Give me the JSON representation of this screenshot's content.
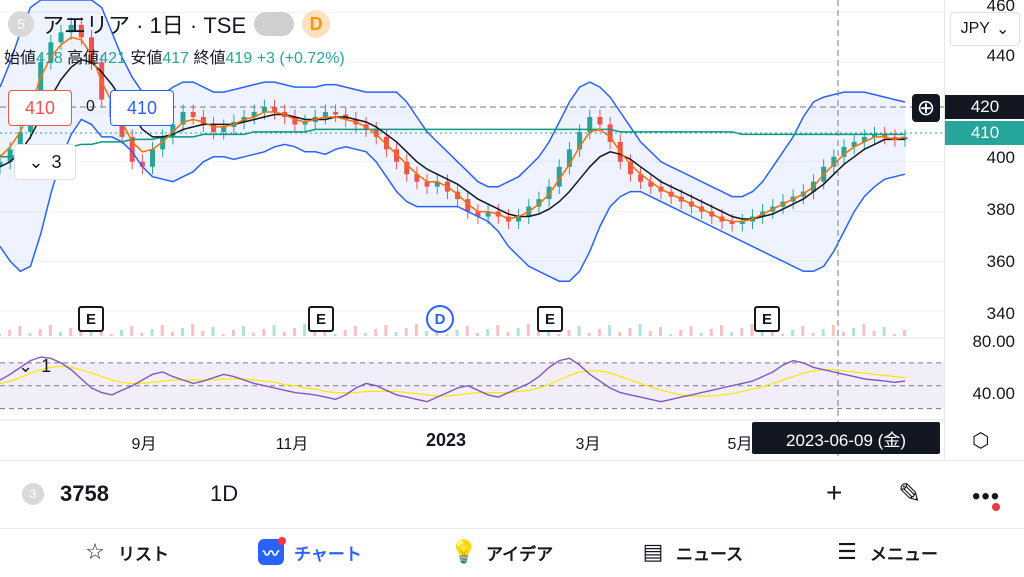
{
  "header": {
    "symbol_badge": "5",
    "title": "アエリア · 1日 · TSE",
    "d_badge": "D",
    "currency": "JPY",
    "currency_chevron": "⌄"
  },
  "ohlc": {
    "open_label": "始値",
    "open_value": "418",
    "high_label": "高値",
    "high_value": "421",
    "low_label": "安値",
    "low_value": "417",
    "close_label": "終値",
    "close_value": "419",
    "change": "+3 (+0.72%)"
  },
  "indicator_boxes": {
    "left_value": "410",
    "middle_value": "0",
    "right_value": "410"
  },
  "collapse_main": {
    "chevron": "⌄",
    "count": "3"
  },
  "collapse_rsi": {
    "chevron": "⌄",
    "count": "1"
  },
  "price_axis": {
    "ticks": [
      "440",
      "420",
      "400",
      "380",
      "360",
      "340"
    ],
    "top_tick": "460",
    "crosshair_price": "420",
    "last_price": "410",
    "rsi_ticks": [
      "80.00",
      "40.00"
    ],
    "colors": {
      "crosshair_tag": "#131722",
      "last_price_tag": "#26a69a"
    }
  },
  "time_axis": {
    "labels": [
      "9月",
      "11月",
      "2023",
      "3月",
      "5月"
    ],
    "crosshair_date": "2023-06-09 (金)"
  },
  "markers": {
    "earnings": "E",
    "dividend": "D"
  },
  "toolbar": {
    "symbol_num": "3",
    "symbol_code": "3758",
    "interval": "1D",
    "plus_icon": "+",
    "draw_icon": "✎",
    "more_icon": "•••"
  },
  "bottom_nav": {
    "items": [
      {
        "label": "リスト",
        "icon": "star-icon"
      },
      {
        "label": "チャート",
        "icon": "chart-icon"
      },
      {
        "label": "アイデア",
        "icon": "lightbulb-icon"
      },
      {
        "label": "ニュース",
        "icon": "news-icon"
      },
      {
        "label": "メニュー",
        "icon": "menu-icon"
      }
    ]
  },
  "chart_data": {
    "type": "candlestick",
    "x_range": [
      "2022-07",
      "2023-06"
    ],
    "ylim": [
      330,
      465
    ],
    "rsi_ylim": [
      20,
      90
    ],
    "rsi_bands": [
      70,
      50,
      30
    ],
    "colors": {
      "up": "#26a69a",
      "down": "#ef5350",
      "bb": "#2962ff",
      "bb_fill": "#2962ff",
      "ma_short": "#ff6d00",
      "ma_mid": "#131722",
      "ma_long": "#089981",
      "rsi": "#7e57c2",
      "rsi_ma": "#ffe600"
    },
    "close": [
      400,
      405,
      412,
      425,
      440,
      448,
      452,
      455,
      450,
      440,
      425,
      418,
      410,
      400,
      398,
      405,
      410,
      415,
      420,
      418,
      415,
      412,
      414,
      416,
      418,
      420,
      422,
      420,
      418,
      415,
      416,
      418,
      420,
      419,
      417,
      415,
      413,
      410,
      405,
      400,
      395,
      392,
      390,
      392,
      388,
      385,
      380,
      378,
      380,
      378,
      376,
      378,
      382,
      385,
      390,
      398,
      405,
      412,
      418,
      415,
      408,
      400,
      395,
      392,
      390,
      388,
      386,
      384,
      382,
      380,
      378,
      376,
      375,
      376,
      378,
      380,
      382,
      384,
      386,
      388,
      392,
      398,
      402,
      406,
      408,
      410,
      411,
      410,
      409,
      410
    ],
    "ma_short": [
      402,
      406,
      412,
      422,
      434,
      442,
      447,
      450,
      449,
      443,
      432,
      424,
      416,
      408,
      404,
      405,
      408,
      412,
      416,
      417,
      416,
      414,
      414,
      415,
      417,
      418,
      420,
      420,
      419,
      417,
      416,
      417,
      418,
      418,
      417,
      416,
      414,
      411,
      407,
      403,
      399,
      395,
      392,
      392,
      390,
      387,
      383,
      380,
      380,
      379,
      377,
      378,
      380,
      383,
      387,
      393,
      399,
      406,
      412,
      413,
      410,
      404,
      399,
      395,
      392,
      389,
      387,
      385,
      383,
      381,
      379,
      377,
      376,
      376,
      377,
      379,
      381,
      383,
      385,
      387,
      390,
      395,
      399,
      403,
      406,
      408,
      410,
      410,
      409,
      410
    ],
    "ma_mid": [
      398,
      400,
      404,
      410,
      418,
      426,
      433,
      438,
      441,
      440,
      436,
      431,
      425,
      419,
      413,
      410,
      410,
      411,
      413,
      414,
      415,
      415,
      415,
      415,
      416,
      417,
      418,
      419,
      419,
      418,
      417,
      417,
      417,
      418,
      418,
      417,
      416,
      414,
      411,
      408,
      404,
      400,
      397,
      395,
      393,
      391,
      388,
      385,
      383,
      381,
      379,
      378,
      378,
      379,
      381,
      384,
      388,
      393,
      398,
      402,
      404,
      403,
      401,
      398,
      395,
      392,
      390,
      388,
      386,
      384,
      382,
      380,
      378,
      377,
      377,
      378,
      379,
      381,
      383,
      385,
      388,
      391,
      395,
      399,
      402,
      405,
      407,
      409,
      409,
      409
    ],
    "ma_long": [
      402,
      402,
      403,
      403,
      404,
      405,
      406,
      406,
      407,
      407,
      408,
      408,
      408,
      409,
      409,
      409,
      410,
      410,
      410,
      410,
      411,
      411,
      411,
      411,
      411,
      412,
      412,
      412,
      412,
      412,
      412,
      413,
      413,
      413,
      413,
      413,
      413,
      413,
      413,
      413,
      413,
      413,
      413,
      413,
      413,
      413,
      413,
      413,
      413,
      413,
      413,
      413,
      413,
      413,
      413,
      413,
      413,
      413,
      413,
      413,
      413,
      412,
      412,
      412,
      412,
      412,
      412,
      412,
      412,
      412,
      412,
      412,
      412,
      411,
      411,
      411,
      411,
      411,
      411,
      411,
      411,
      411,
      411,
      411,
      411,
      411,
      411,
      411,
      411,
      411
    ],
    "bb_upper": [
      430,
      440,
      452,
      462,
      465,
      465,
      465,
      465,
      465,
      465,
      462,
      452,
      442,
      434,
      428,
      426,
      427,
      430,
      432,
      432,
      430,
      428,
      428,
      429,
      430,
      431,
      432,
      432,
      431,
      430,
      430,
      430,
      431,
      431,
      430,
      429,
      428,
      428,
      428,
      428,
      424,
      418,
      412,
      408,
      404,
      400,
      396,
      392,
      390,
      390,
      392,
      394,
      398,
      402,
      408,
      416,
      424,
      430,
      432,
      430,
      426,
      420,
      414,
      408,
      404,
      400,
      398,
      396,
      394,
      392,
      390,
      388,
      386,
      386,
      388,
      392,
      398,
      404,
      410,
      418,
      424,
      426,
      427,
      428,
      428,
      428,
      427,
      426,
      425,
      424
    ],
    "bb_lower": [
      366,
      360,
      356,
      358,
      371,
      387,
      401,
      411,
      417,
      415,
      410,
      410,
      408,
      404,
      398,
      394,
      393,
      392,
      394,
      396,
      400,
      402,
      402,
      401,
      402,
      403,
      404,
      406,
      407,
      406,
      404,
      404,
      403,
      405,
      406,
      405,
      404,
      400,
      394,
      388,
      384,
      382,
      382,
      382,
      382,
      382,
      380,
      378,
      376,
      372,
      366,
      362,
      358,
      356,
      354,
      352,
      352,
      356,
      364,
      374,
      382,
      386,
      388,
      388,
      386,
      384,
      382,
      380,
      378,
      376,
      374,
      372,
      370,
      368,
      366,
      364,
      362,
      360,
      358,
      356,
      356,
      358,
      364,
      372,
      380,
      386,
      390,
      393,
      394,
      395
    ],
    "rsi": [
      55,
      60,
      66,
      72,
      75,
      74,
      70,
      64,
      56,
      48,
      44,
      42,
      46,
      50,
      55,
      60,
      62,
      58,
      55,
      52,
      54,
      57,
      60,
      58,
      55,
      52,
      50,
      48,
      46,
      44,
      43,
      42,
      40,
      38,
      42,
      48,
      52,
      50,
      46,
      42,
      40,
      38,
      36,
      40,
      44,
      48,
      50,
      46,
      42,
      40,
      44,
      48,
      52,
      58,
      66,
      72,
      74,
      68,
      60,
      54,
      48,
      44,
      42,
      40,
      38,
      36,
      38,
      40,
      42,
      44,
      46,
      48,
      50,
      52,
      54,
      58,
      62,
      68,
      72,
      70,
      66,
      64,
      62,
      60,
      58,
      56,
      55,
      54,
      53,
      54
    ],
    "rsi_ma": [
      52,
      54,
      57,
      61,
      64,
      66,
      67,
      66,
      64,
      61,
      58,
      55,
      53,
      52,
      52,
      53,
      54,
      55,
      55,
      55,
      55,
      55,
      56,
      56,
      56,
      55,
      54,
      53,
      51,
      50,
      48,
      47,
      45,
      44,
      44,
      44,
      45,
      45,
      45,
      45,
      44,
      43,
      42,
      41,
      41,
      42,
      43,
      44,
      44,
      44,
      44,
      45,
      46,
      48,
      51,
      55,
      59,
      62,
      63,
      63,
      61,
      58,
      55,
      52,
      49,
      46,
      44,
      42,
      41,
      41,
      41,
      42,
      43,
      45,
      47,
      49,
      52,
      55,
      58,
      61,
      63,
      64,
      64,
      63,
      62,
      61,
      60,
      59,
      58,
      57
    ],
    "earnings_marker_positions": [
      "2022-08",
      "2022-11",
      "2023-02",
      "2023-05"
    ],
    "dividend_marker_position": "2022-12"
  }
}
